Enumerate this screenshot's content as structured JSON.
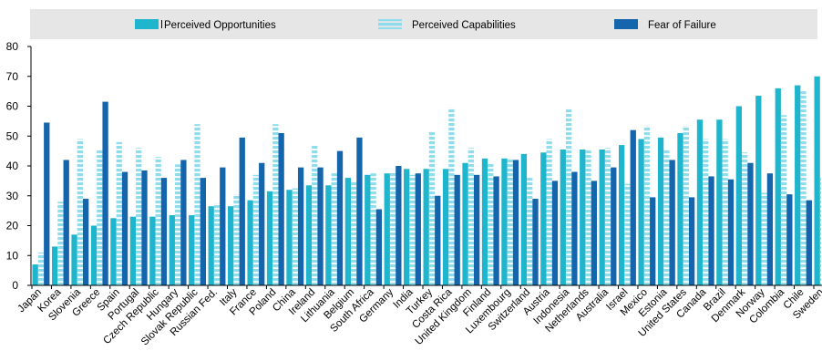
{
  "colors": {
    "opportunities": "#1fb5cc",
    "capabilities": "#8fdced",
    "fear": "#1565ad",
    "legend_bg": "#e6e6e6",
    "axis": "#000000"
  },
  "legend": {
    "opportunities_label": "Perceived Opportunities",
    "capabilities_label": "Perceived Capabilities",
    "fear_label": "Fear of Failure"
  },
  "chart_data": {
    "type": "bar",
    "title": "",
    "xlabel": "",
    "ylabel": "",
    "ylim": [
      0,
      80
    ],
    "yticks": [
      0,
      10,
      20,
      30,
      40,
      50,
      60,
      70,
      80
    ],
    "grid": false,
    "legend_position": "top",
    "categories": [
      "Japan",
      "Korea",
      "Slovenia",
      "Greece",
      "Spain",
      "Portugal",
      "Czech Republic",
      "Hungary",
      "Slovak Republic",
      "Russian Fed.",
      "Italy",
      "France",
      "Poland",
      "China",
      "Ireland",
      "Lithuania",
      "Belgium",
      "South Africa",
      "Germany",
      "India",
      "Turkey",
      "Costa Rica",
      "United Kingdom",
      "Finland",
      "Luxembourg",
      "Switzerland",
      "Austria",
      "Indonesia",
      "Netherlands",
      "Australia",
      "Israel",
      "Mexico",
      "Estonia",
      "United States",
      "Canada",
      "Brazil",
      "Denmark",
      "Norway",
      "Colombia",
      "Chile",
      "Sweden"
    ],
    "series": [
      {
        "name": "Perceived Opportunities",
        "style": "solid",
        "values": [
          7,
          13,
          17,
          20,
          22.5,
          23,
          23,
          23.5,
          23.5,
          26.5,
          26.5,
          28.5,
          31.5,
          32,
          33.5,
          33.5,
          36,
          37,
          37.5,
          39,
          39,
          39,
          41,
          42.5,
          42.5,
          44,
          44.5,
          45.5,
          45.5,
          45.5,
          47,
          49,
          49.5,
          51,
          55.5,
          55.5,
          60,
          63.5,
          66,
          67,
          70
        ]
      },
      {
        "name": "Perceived Capabilities",
        "style": "dashed",
        "values": [
          11,
          28,
          49,
          45.5,
          48,
          46,
          43,
          40.5,
          54,
          27.5,
          30.5,
          37,
          54,
          32.5,
          47,
          37.5,
          34.5,
          37.5,
          38,
          37,
          51.5,
          59.5,
          46,
          41,
          42.5,
          36,
          49,
          59.5,
          45.5,
          46,
          34,
          53.5,
          45.5,
          53.5,
          49,
          49,
          44.5,
          31,
          57,
          65,
          36
        ]
      },
      {
        "name": "Fear of Failure",
        "style": "solid",
        "values": [
          54.5,
          42,
          29,
          61.5,
          38,
          38.5,
          36,
          42,
          36,
          39.5,
          49.5,
          41,
          51,
          39.5,
          39.5,
          45,
          49.5,
          25.5,
          40,
          37.5,
          30,
          37,
          37,
          36.5,
          42,
          29,
          35,
          38,
          35,
          39.5,
          52,
          29.5,
          42,
          29.5,
          36.5,
          35.5,
          41,
          37.5,
          30.5,
          28.5,
          null
        ]
      }
    ]
  }
}
